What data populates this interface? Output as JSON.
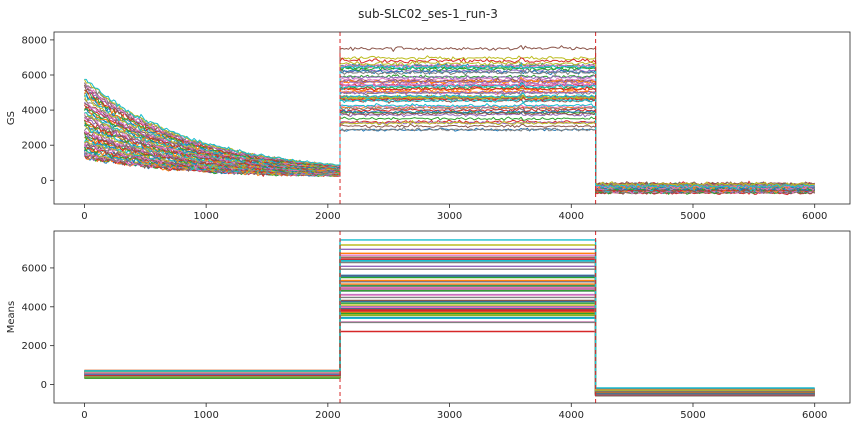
{
  "figure": {
    "title": "sub-SLC02_ses-1_run-3"
  },
  "colors": {
    "palette": [
      "#1f77b4",
      "#ff7f0e",
      "#2ca02c",
      "#d62728",
      "#9467bd",
      "#8c564b",
      "#e377c2",
      "#7f7f7f",
      "#bcbd22",
      "#17becf"
    ],
    "boundary_line": "#d62728",
    "axes_edge": "#262626",
    "background": "#ffffff"
  },
  "chart_data": [
    {
      "type": "line",
      "title": "",
      "xlabel": "",
      "ylabel": "GS",
      "xlim": [
        -250,
        6290
      ],
      "ylim": [
        -1350,
        8450
      ],
      "x_ticks": [
        0,
        1000,
        2000,
        3000,
        4000,
        5000,
        6000
      ],
      "y_ticks": [
        0,
        2000,
        4000,
        6000,
        8000
      ],
      "grid": false,
      "vlines": [
        2100,
        4200
      ],
      "segments": [
        {
          "x": [
            0,
            2100
          ],
          "shape": "exponential-decay",
          "start_range": [
            1300,
            5800
          ],
          "end_range": [
            150,
            400
          ],
          "noisy": true
        },
        {
          "x": [
            2100,
            4200
          ],
          "shape": "flat",
          "level_range": [
            2400,
            7800
          ],
          "noisy": true,
          "transient_at": 3600
        },
        {
          "x": [
            4200,
            6000
          ],
          "shape": "flat",
          "level_range": [
            -750,
            -150
          ],
          "noisy": true
        }
      ],
      "approx_series_count": 60
    },
    {
      "type": "line",
      "title": "",
      "xlabel": "",
      "ylabel": "Means",
      "xlim": [
        -250,
        6290
      ],
      "ylim": [
        -950,
        7900
      ],
      "x_ticks": [
        0,
        1000,
        2000,
        3000,
        4000,
        5000,
        6000
      ],
      "y_ticks": [
        0,
        2000,
        4000,
        6000
      ],
      "grid": false,
      "vlines": [
        2100,
        4200
      ],
      "segments": [
        {
          "x": [
            0,
            2100
          ],
          "shape": "flat",
          "level_range": [
            300,
            800
          ]
        },
        {
          "x": [
            2100,
            4200
          ],
          "shape": "flat",
          "level_range": [
            2400,
            7600
          ]
        },
        {
          "x": [
            4200,
            6000
          ],
          "shape": "flat",
          "level_range": [
            -600,
            -150
          ]
        }
      ],
      "approx_series_count": 60
    }
  ]
}
